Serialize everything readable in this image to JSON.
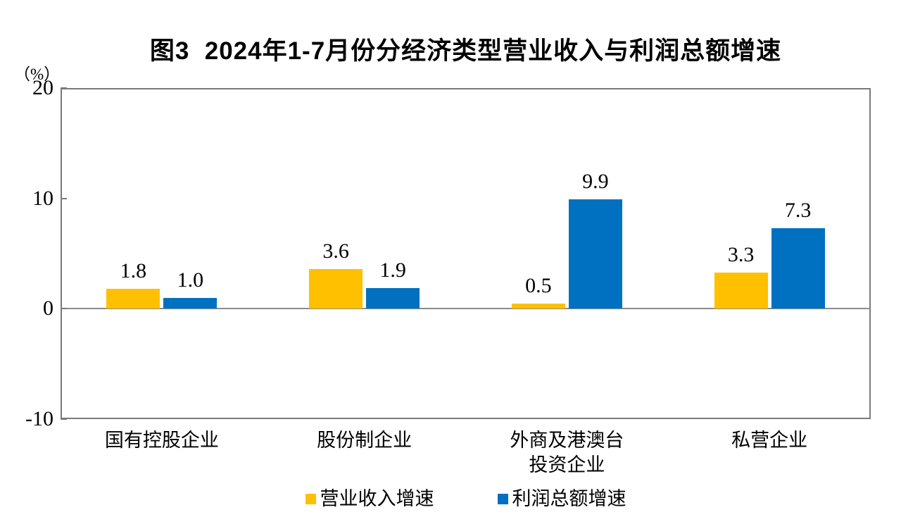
{
  "page": {
    "background_color": "#ffffff"
  },
  "chart_data": {
    "type": "bar",
    "title": "图3  2024年1-7月份分经济类型营业收入与利润总额增速",
    "unit_label": "（%）",
    "categories": [
      "国有控股企业",
      "股份制企业",
      "外商及港澳台投资企业",
      "私营企业"
    ],
    "category_display_lines": [
      [
        "国有控股企业"
      ],
      [
        "股份制企业"
      ],
      [
        "外商及港澳台",
        "投资企业"
      ],
      [
        "私营企业"
      ]
    ],
    "series": [
      {
        "name": "营业收入增速",
        "color": "#FFC000",
        "values": [
          1.8,
          3.6,
          0.5,
          3.3
        ]
      },
      {
        "name": "利润总额增速",
        "color": "#0070C0",
        "values": [
          1.0,
          1.9,
          9.9,
          7.3
        ]
      }
    ],
    "value_labels": [
      [
        "1.8",
        "3.6",
        "0.5",
        "3.3"
      ],
      [
        "1.0",
        "1.9",
        "9.9",
        "7.3"
      ]
    ],
    "ylim": [
      -10,
      20
    ],
    "yticks": [
      20,
      10,
      0,
      -10
    ],
    "grid": false,
    "legend_position": "bottom",
    "axis_color": "#7a7a7a",
    "zero_line_color": "#8c8c8c"
  }
}
